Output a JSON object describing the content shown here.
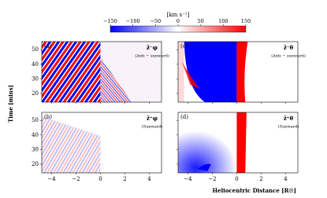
{
  "chart_data": {
    "type": "heatmap",
    "colorbar": {
      "label": "[km s⁻¹]",
      "lim": [
        -150,
        150
      ],
      "ticks": [
        {
          "value": -150,
          "label": "−150"
        },
        {
          "value": -100,
          "label": "−100"
        },
        {
          "value": -50,
          "label": "−50"
        },
        0,
        50,
        100,
        150
      ],
      "colors": [
        "#0000ff",
        "#ffffff",
        "#ff0000"
      ]
    },
    "xlabel": "Heliocentric Distance [R☉]",
    "ylabel": "Time [mins]",
    "xlim": [
      -4.8,
      5
    ],
    "xticks": [
      {
        "value": -4,
        "label": "−4"
      },
      {
        "value": -2,
        "label": "−2"
      },
      0,
      2,
      4
    ],
    "ylim": [
      14,
      55.5
    ],
    "yticks": [
      20,
      30,
      40,
      50
    ],
    "panels": [
      {
        "tag": "(a)",
        "quantity": "z̃⁻φ",
        "note": "(Anti − sunward)"
      },
      {
        "tag": "(b)",
        "quantity": "z̃⁺φ",
        "note": "(Sunward)"
      },
      {
        "tag": "(c)",
        "quantity": "z̃⁻θ",
        "note": "(Anti − sunward)"
      },
      {
        "tag": "(d)",
        "quantity": "z̃⁺θ",
        "note": "(Sunward)"
      }
    ]
  }
}
